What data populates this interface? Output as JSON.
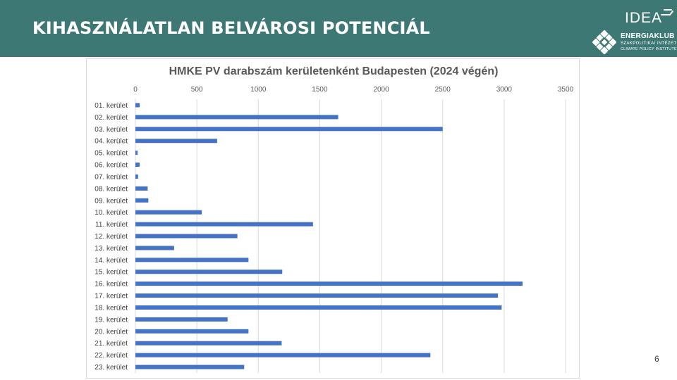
{
  "header": {
    "title": "KIHASZNÁLATLAN BELVÁROSI POTENCIÁL",
    "idea_logo": "IDEA",
    "energiaklub_name": "ENERGIAKLUB",
    "energiaklub_sub1": "SZAKPOLITIKAI INTÉZET",
    "energiaklub_sub2": "CLIMATE POLICY INSTITUTE"
  },
  "colors": {
    "header_bg": "#3e7874",
    "bar": "#4472c4",
    "grid": "#d9d9d9"
  },
  "page_number": "6",
  "chart_data": {
    "type": "bar",
    "orientation": "horizontal",
    "title": "HMKE PV darabszám kerületenként Budapesten (2024 végén)",
    "xlim": [
      0,
      3500
    ],
    "x_ticks": [
      0,
      500,
      1000,
      1500,
      2000,
      2500,
      3000,
      3500
    ],
    "x_tick_labels": [
      "0",
      "500",
      "1000",
      "1500",
      "2000",
      "2500",
      "3000",
      "3500"
    ],
    "grid": "vertical",
    "legend": "none",
    "categories": [
      "01. kerület",
      "02. kerület",
      "03. kerület",
      "04. kerület",
      "05. kerület",
      "06. kerület",
      "07. kerület",
      "08. kerület",
      "09. kerület",
      "10. kerület",
      "11. kerület",
      "12. kerület",
      "13. kerület",
      "14. kerület",
      "15. kerület",
      "16. kerület",
      "17. kerület",
      "18. kerület",
      "19. kerület",
      "20. kerület",
      "21. kerület",
      "22. kerület",
      "23. kerület"
    ],
    "values": [
      35,
      1650,
      2500,
      665,
      18,
      35,
      22,
      100,
      105,
      540,
      1445,
      830,
      315,
      920,
      1195,
      3150,
      2950,
      2980,
      750,
      920,
      1190,
      2400,
      885
    ]
  }
}
